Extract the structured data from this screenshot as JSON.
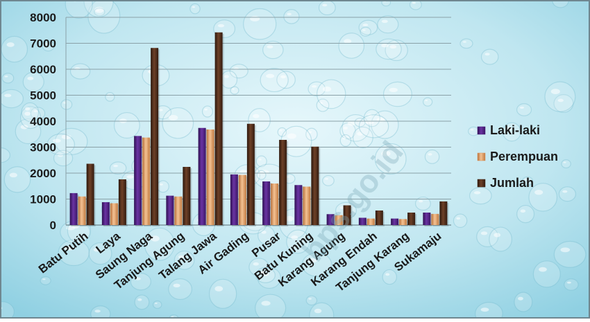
{
  "watermark": "bps.go.id",
  "colors": {
    "background": "#bfe6f0",
    "background_light": "#e6f7fb",
    "background_dark": "#8fd0e2",
    "border": "#6f8790",
    "grid": "#8aa1a8",
    "axis_text": "#1a1a1a",
    "laki": "#4b1f7a",
    "perempuan": "#d9925a",
    "jumlah": "#4a2c1c"
  },
  "chart_data": {
    "type": "bar",
    "categories": [
      "Batu Putih",
      "Laya",
      "Saung Naga",
      "Tanjung Agung",
      "Talang Jawa",
      "Air Gading",
      "Pusar",
      "Batu Kuning",
      "Karang Agung",
      "Karang Endah",
      "Tanjung Karang",
      "Sukamaju"
    ],
    "series": [
      {
        "name": "Laki-laki",
        "values": [
          1230,
          880,
          3430,
          1130,
          3740,
          1950,
          1680,
          1540,
          420,
          280,
          250,
          480
        ]
      },
      {
        "name": "Perempuan",
        "values": [
          1100,
          840,
          3370,
          1100,
          3680,
          1930,
          1600,
          1480,
          380,
          250,
          230,
          430
        ]
      },
      {
        "name": "Jumlah",
        "values": [
          2360,
          1760,
          6820,
          2240,
          7420,
          3900,
          3280,
          3020,
          760,
          560,
          480,
          910
        ]
      }
    ],
    "yticks": [
      "0",
      "1000",
      "2000",
      "3000",
      "4000",
      "5000",
      "6000",
      "7000",
      "8000"
    ],
    "ylim": [
      0,
      8000
    ],
    "grid": true,
    "legend_position": "right"
  }
}
